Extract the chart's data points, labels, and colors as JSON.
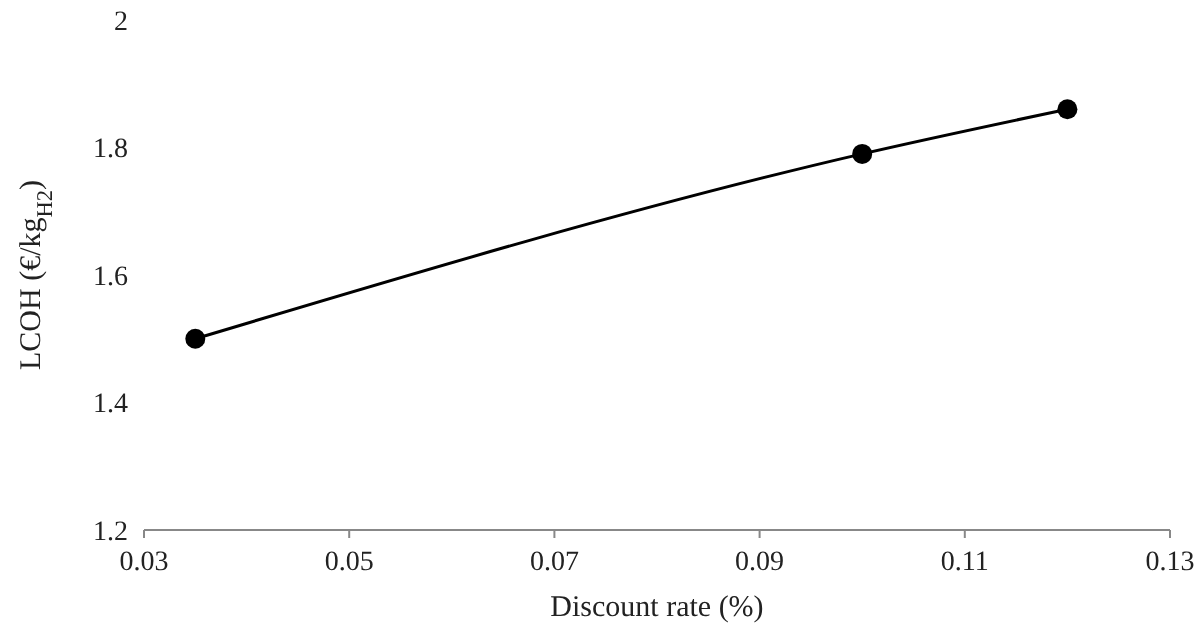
{
  "chart_data": {
    "type": "line",
    "xlabel": "Discount rate (%)",
    "ylabel": "LCOH (€/kg$_{H2}$)",
    "x": [
      0.035,
      0.1,
      0.12
    ],
    "series": [
      {
        "color": "#000000",
        "values": [
          1.5,
          1.79,
          1.86
        ]
      }
    ],
    "xlim": [
      0.03,
      0.13
    ],
    "xticks": [
      0.03,
      0.05,
      0.07,
      0.09,
      0.11,
      0.13
    ],
    "ylim": [
      1.2,
      2
    ],
    "yticks": [
      1.2,
      1.4,
      1.6,
      1.8,
      2
    ],
    "marker": "circle",
    "line_style": "solid",
    "grid": false
  }
}
